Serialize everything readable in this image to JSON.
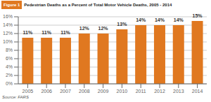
{
  "chart_data": {
    "type": "bar",
    "title": "Pedestrian Deaths as a Percent of Total Motor Vehicle Deaths, 2005 - 2014",
    "annotations": [
      "Figure 1",
      "Source: FARS"
    ],
    "categories": [
      "2005",
      "2006",
      "2007",
      "2008",
      "2009",
      "2010",
      "2011",
      "2012",
      "2013",
      "2014"
    ],
    "values": [
      11,
      11,
      11,
      12,
      12,
      13,
      14,
      14,
      14,
      15
    ],
    "value_labels": [
      "11%",
      "11%",
      "11%",
      "12%",
      "12%",
      "13%",
      "14%",
      "14%",
      "14%",
      "15%"
    ],
    "data_labels": true,
    "color": "#E07820",
    "ylim": [
      0,
      16
    ],
    "yticks": [
      {
        "value": 0,
        "label": "0%"
      },
      {
        "value": 2,
        "label": "2%"
      },
      {
        "value": 4,
        "label": "4%"
      },
      {
        "value": 6,
        "label": "6%"
      },
      {
        "value": 8,
        "label": "8%"
      },
      {
        "value": 10,
        "label": "10%"
      },
      {
        "value": 12,
        "label": "12%"
      },
      {
        "value": 14,
        "label": "14%"
      },
      {
        "value": 16,
        "label": "16%"
      }
    ],
    "grid": true
  }
}
